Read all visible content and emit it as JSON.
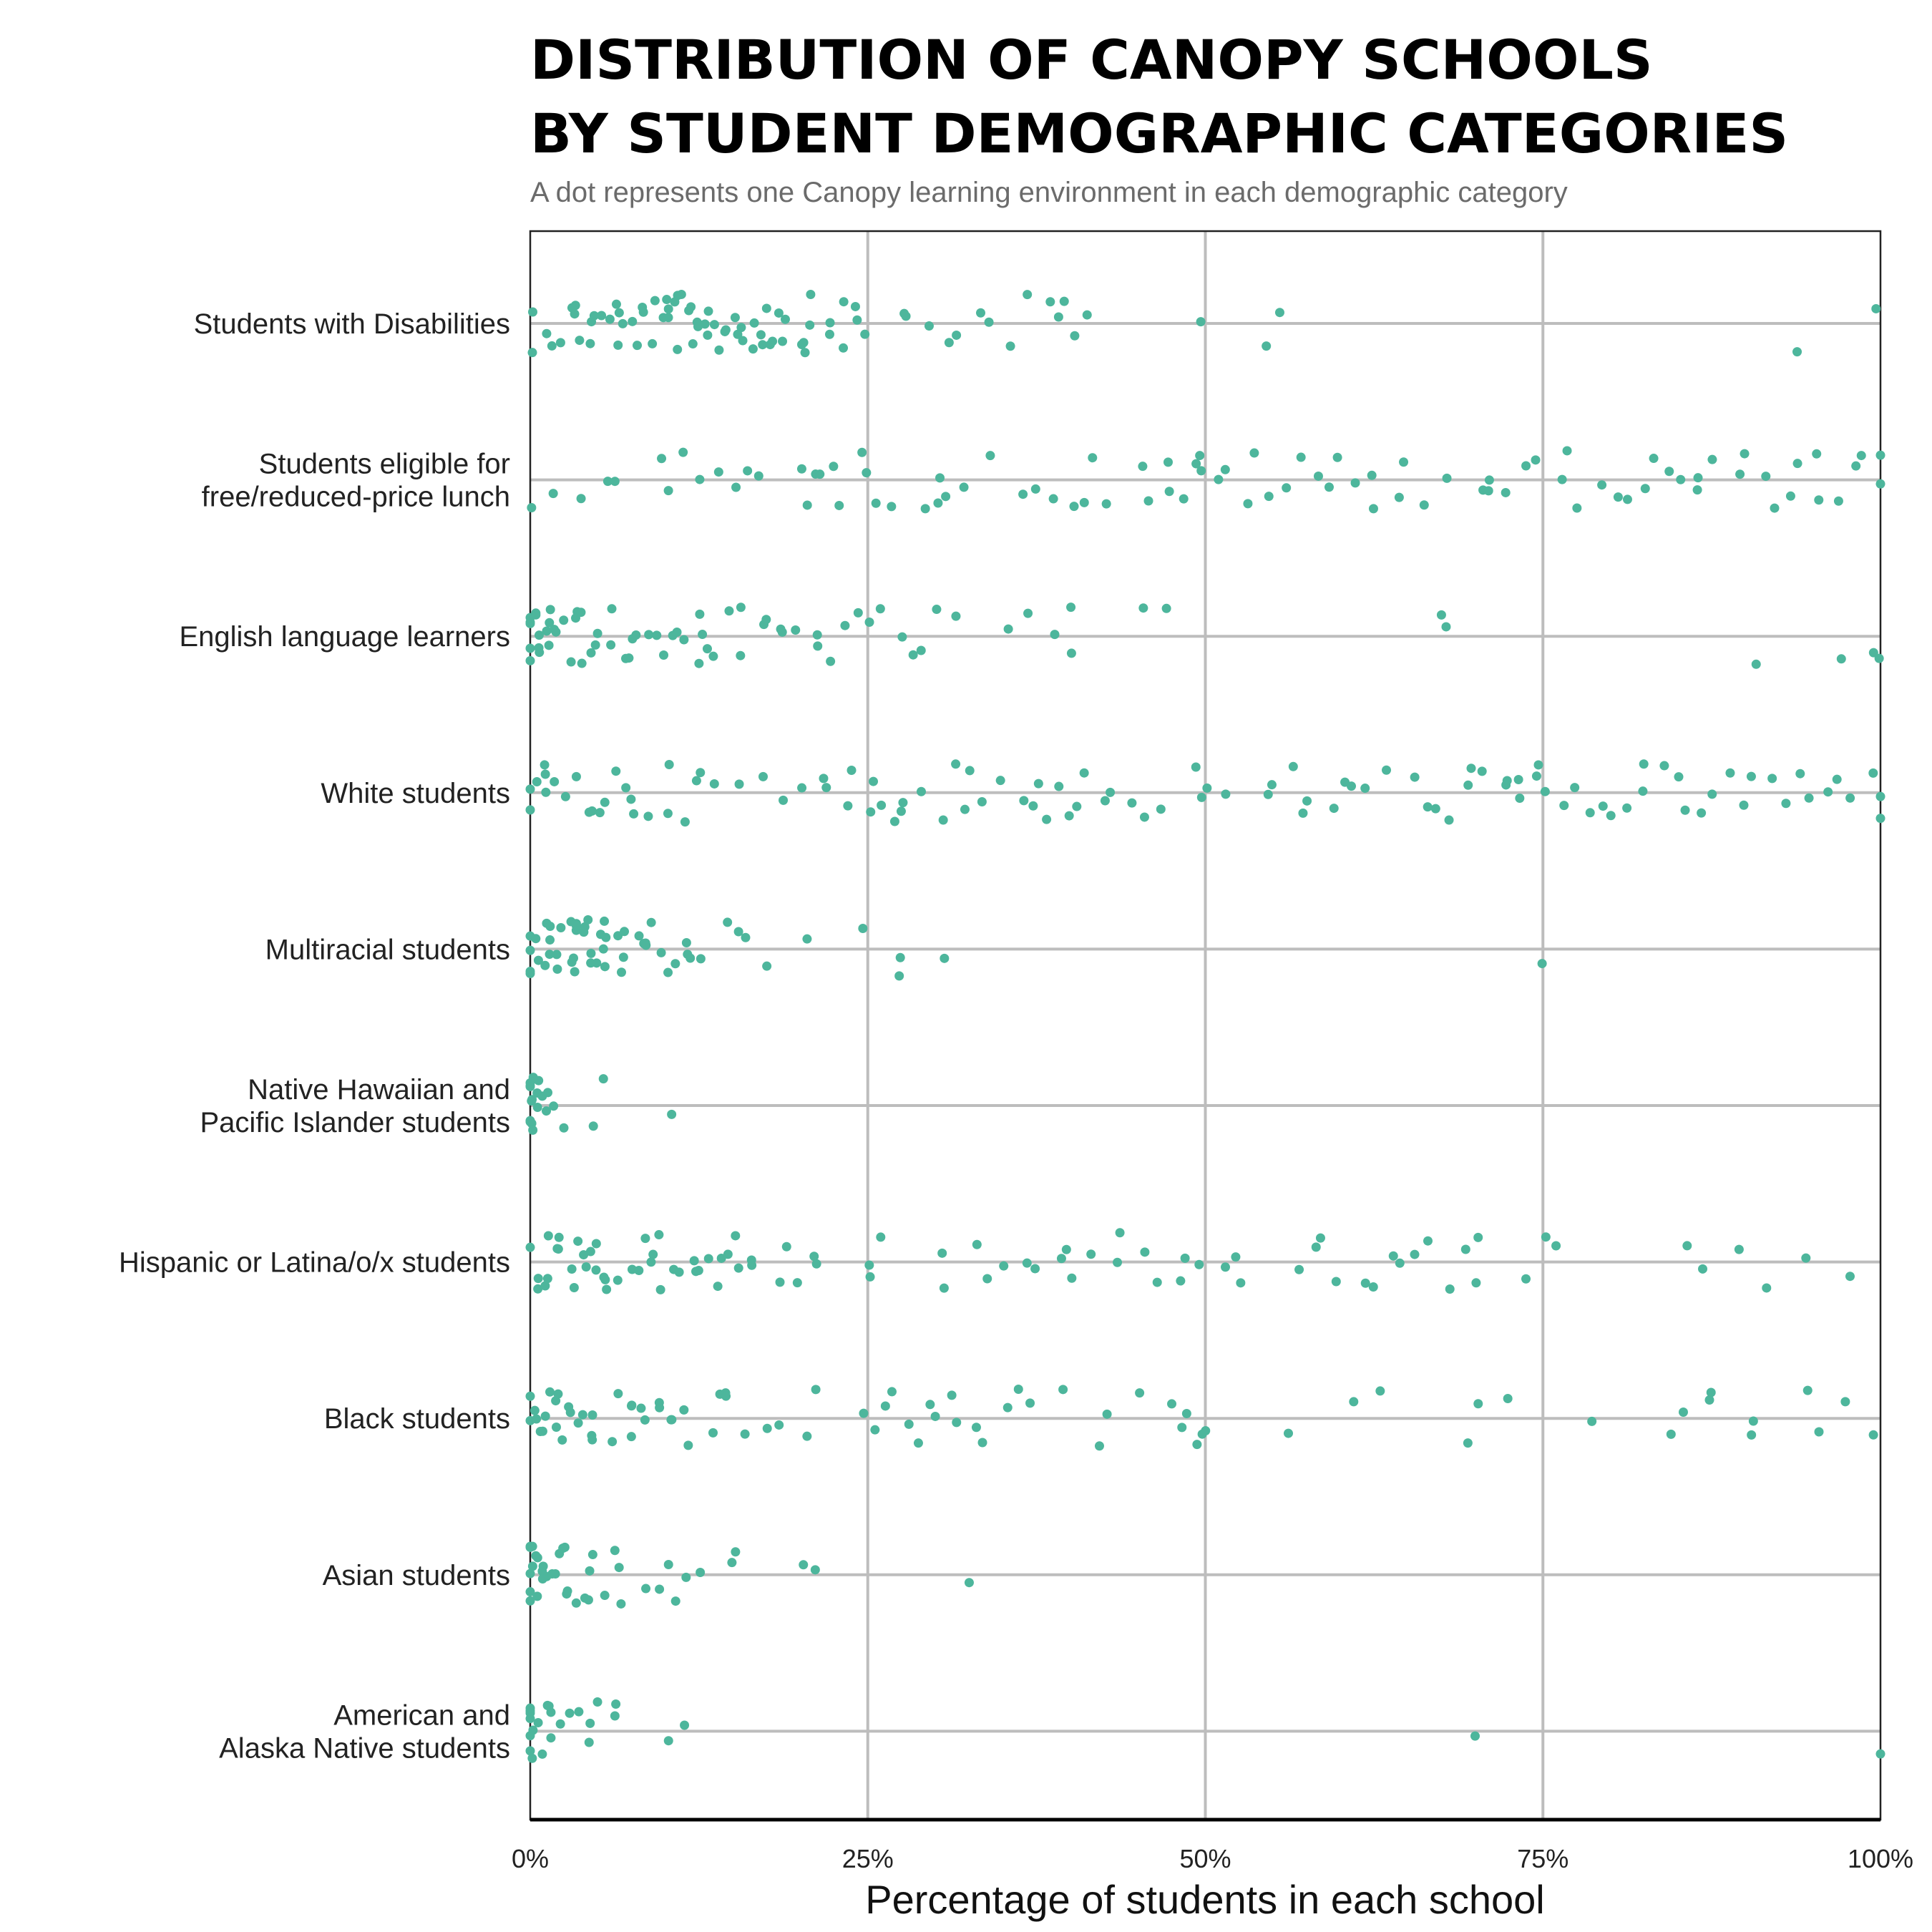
{
  "chart_data": {
    "type": "scatter",
    "title_lines": [
      "DISTRIBUTION OF CANOPY SCHOOLS",
      "BY STUDENT DEMOGRAPHIC CATEGORIES"
    ],
    "subtitle": "A dot represents one Canopy learning environment in each demographic category",
    "xlabel": "Percentage of students in each school",
    "xlim": [
      0,
      100
    ],
    "x_ticks": [
      0,
      25,
      50,
      75,
      100
    ],
    "x_tick_labels": [
      "0%",
      "25%",
      "50%",
      "75%",
      "100%"
    ],
    "grid": true,
    "point_color": "#4db69c",
    "categories": [
      {
        "label_lines": [
          "Students with Disabilities"
        ]
      },
      {
        "label_lines": [
          "Students eligible for",
          "free/reduced-price lunch"
        ]
      },
      {
        "label_lines": [
          "English language learners"
        ]
      },
      {
        "label_lines": [
          "White students"
        ]
      },
      {
        "label_lines": [
          "Multiracial students"
        ]
      },
      {
        "label_lines": [
          "Native Hawaiian and",
          "Pacific Islander students"
        ]
      },
      {
        "label_lines": [
          "Hispanic or Latina/o/x students"
        ]
      },
      {
        "label_lines": [
          "Black students"
        ]
      },
      {
        "label_lines": [
          "Asian students"
        ]
      },
      {
        "label_lines": [
          "American and",
          "Alaska Native students"
        ]
      }
    ],
    "series": [
      {
        "category": "Students with Disabilities",
        "values": [
          0,
          0,
          1,
          2,
          2,
          3,
          3,
          3,
          4,
          4,
          5,
          5,
          5,
          6,
          6,
          6,
          7,
          7,
          7,
          8,
          8,
          8,
          9,
          9,
          10,
          10,
          10,
          10,
          11,
          11,
          11,
          11,
          12,
          12,
          12,
          12,
          13,
          13,
          13,
          13,
          14,
          14,
          14,
          15,
          15,
          15,
          16,
          16,
          16,
          17,
          17,
          17,
          18,
          18,
          18,
          19,
          19,
          19,
          20,
          20,
          20,
          21,
          21,
          22,
          22,
          23,
          23,
          24,
          24,
          25,
          28,
          28,
          30,
          31,
          31,
          33,
          34,
          36,
          37,
          39,
          39,
          40,
          40,
          41,
          50,
          55,
          55,
          94,
          100
        ]
      },
      {
        "category": "Students eligible for free/reduced-price lunch",
        "values": [
          0,
          2,
          4,
          6,
          6,
          10,
          10,
          11,
          13,
          14,
          15,
          16,
          17,
          20,
          20,
          21,
          22,
          22,
          23,
          24,
          25,
          26,
          27,
          29,
          30,
          30,
          31,
          32,
          34,
          36,
          38,
          39,
          40,
          41,
          42,
          43,
          45,
          46,
          47,
          47,
          48,
          49,
          50,
          50,
          51,
          52,
          53,
          54,
          55,
          56,
          57,
          58,
          59,
          60,
          61,
          62,
          63,
          64,
          65,
          66,
          68,
          70,
          71,
          71,
          72,
          74,
          75,
          76,
          77,
          78,
          79,
          80,
          81,
          82,
          83,
          84,
          85,
          86,
          87,
          88,
          89,
          90,
          91,
          92,
          93,
          94,
          95,
          96,
          97,
          98,
          99,
          100,
          100
        ]
      },
      {
        "category": "English language learners",
        "values": [
          0,
          0,
          0,
          0,
          0,
          0,
          1,
          1,
          1,
          1,
          1,
          1,
          2,
          2,
          2,
          2,
          3,
          3,
          3,
          3,
          4,
          4,
          4,
          5,
          5,
          6,
          6,
          7,
          7,
          8,
          8,
          9,
          9,
          10,
          10,
          11,
          11,
          12,
          12,
          13,
          13,
          14,
          15,
          16,
          16,
          17,
          17,
          18,
          19,
          20,
          21,
          21,
          22,
          23,
          24,
          25,
          26,
          27,
          28,
          29,
          30,
          31,
          36,
          37,
          39,
          40,
          40,
          45,
          47,
          68,
          68,
          91,
          97,
          100,
          100
        ]
      },
      {
        "category": "White students",
        "values": [
          0,
          0,
          0,
          1,
          1,
          1,
          2,
          3,
          3,
          4,
          5,
          5,
          6,
          6,
          7,
          7,
          8,
          9,
          10,
          10,
          11,
          12,
          13,
          14,
          15,
          17,
          19,
          20,
          22,
          22,
          23,
          24,
          25,
          26,
          26,
          27,
          27,
          28,
          29,
          30,
          31,
          32,
          32,
          33,
          35,
          36,
          37,
          38,
          38,
          39,
          40,
          40,
          41,
          42,
          43,
          45,
          45,
          47,
          49,
          50,
          50,
          52,
          55,
          55,
          56,
          57,
          58,
          59,
          60,
          61,
          62,
          63,
          65,
          66,
          67,
          68,
          69,
          70,
          71,
          72,
          72,
          73,
          73,
          74,
          75,
          75,
          76,
          77,
          78,
          79,
          80,
          81,
          82,
          83,
          84,
          85,
          86,
          87,
          88,
          89,
          90,
          91,
          92,
          93,
          94,
          95,
          96,
          97,
          98,
          99,
          100,
          100
        ]
      },
      {
        "category": "Multiracial students",
        "values": [
          0,
          0,
          0,
          0,
          1,
          1,
          1,
          1,
          1,
          2,
          2,
          2,
          2,
          2,
          3,
          3,
          3,
          3,
          3,
          4,
          4,
          4,
          4,
          4,
          5,
          5,
          5,
          5,
          5,
          6,
          6,
          6,
          6,
          7,
          7,
          7,
          8,
          8,
          8,
          9,
          9,
          10,
          10,
          11,
          11,
          12,
          12,
          13,
          15,
          15,
          16,
          17,
          20,
          25,
          27,
          27,
          31,
          75
        ]
      },
      {
        "category": "Native Hawaiian and Pacific Islander students",
        "values": [
          0,
          0,
          0,
          0,
          0,
          0,
          0,
          0,
          0,
          0,
          0,
          1,
          1,
          1,
          1,
          1,
          2,
          3,
          5,
          6,
          10
        ]
      },
      {
        "category": "Hispanic or Latina/o/x students",
        "values": [
          0,
          0,
          0,
          1,
          1,
          1,
          2,
          2,
          2,
          3,
          3,
          3,
          4,
          4,
          4,
          5,
          5,
          5,
          6,
          6,
          7,
          7,
          8,
          8,
          9,
          9,
          10,
          10,
          11,
          11,
          12,
          12,
          13,
          13,
          14,
          14,
          15,
          15,
          16,
          16,
          17,
          18,
          19,
          20,
          21,
          21,
          25,
          25,
          26,
          30,
          31,
          33,
          34,
          35,
          37,
          37,
          39,
          40,
          40,
          42,
          43,
          44,
          45,
          47,
          48,
          48,
          50,
          51,
          52,
          53,
          57,
          58,
          59,
          60,
          62,
          63,
          64,
          65,
          66,
          67,
          68,
          69,
          70,
          70,
          74,
          75,
          76,
          86,
          87,
          89,
          91,
          94,
          98
        ]
      },
      {
        "category": "Black students",
        "values": [
          0,
          0,
          0,
          0,
          1,
          1,
          1,
          1,
          2,
          2,
          2,
          2,
          3,
          3,
          3,
          4,
          4,
          5,
          5,
          6,
          6,
          7,
          7,
          8,
          8,
          9,
          9,
          10,
          10,
          11,
          11,
          12,
          13,
          14,
          15,
          15,
          16,
          18,
          19,
          20,
          21,
          25,
          25,
          26,
          27,
          28,
          29,
          30,
          30,
          31,
          32,
          33,
          34,
          35,
          36,
          37,
          39,
          42,
          43,
          45,
          47,
          48,
          49,
          49,
          50,
          50,
          56,
          61,
          63,
          69,
          70,
          72,
          79,
          84,
          85,
          87,
          88,
          91,
          91,
          95,
          96,
          97,
          99
        ]
      },
      {
        "category": "Asian students",
        "values": [
          0,
          0,
          0,
          0,
          0,
          0,
          0,
          0,
          1,
          1,
          1,
          1,
          1,
          1,
          2,
          2,
          2,
          2,
          3,
          3,
          3,
          3,
          4,
          4,
          4,
          5,
          5,
          6,
          6,
          7,
          8,
          9,
          10,
          11,
          12,
          13,
          15,
          15,
          20,
          21,
          33
        ]
      },
      {
        "category": "American and Alaska Native students",
        "values": [
          0,
          0,
          0,
          0,
          0,
          0,
          0,
          0,
          0,
          1,
          1,
          1,
          1,
          2,
          2,
          3,
          3,
          4,
          4,
          5,
          6,
          6,
          10,
          11,
          70,
          100
        ]
      }
    ]
  }
}
